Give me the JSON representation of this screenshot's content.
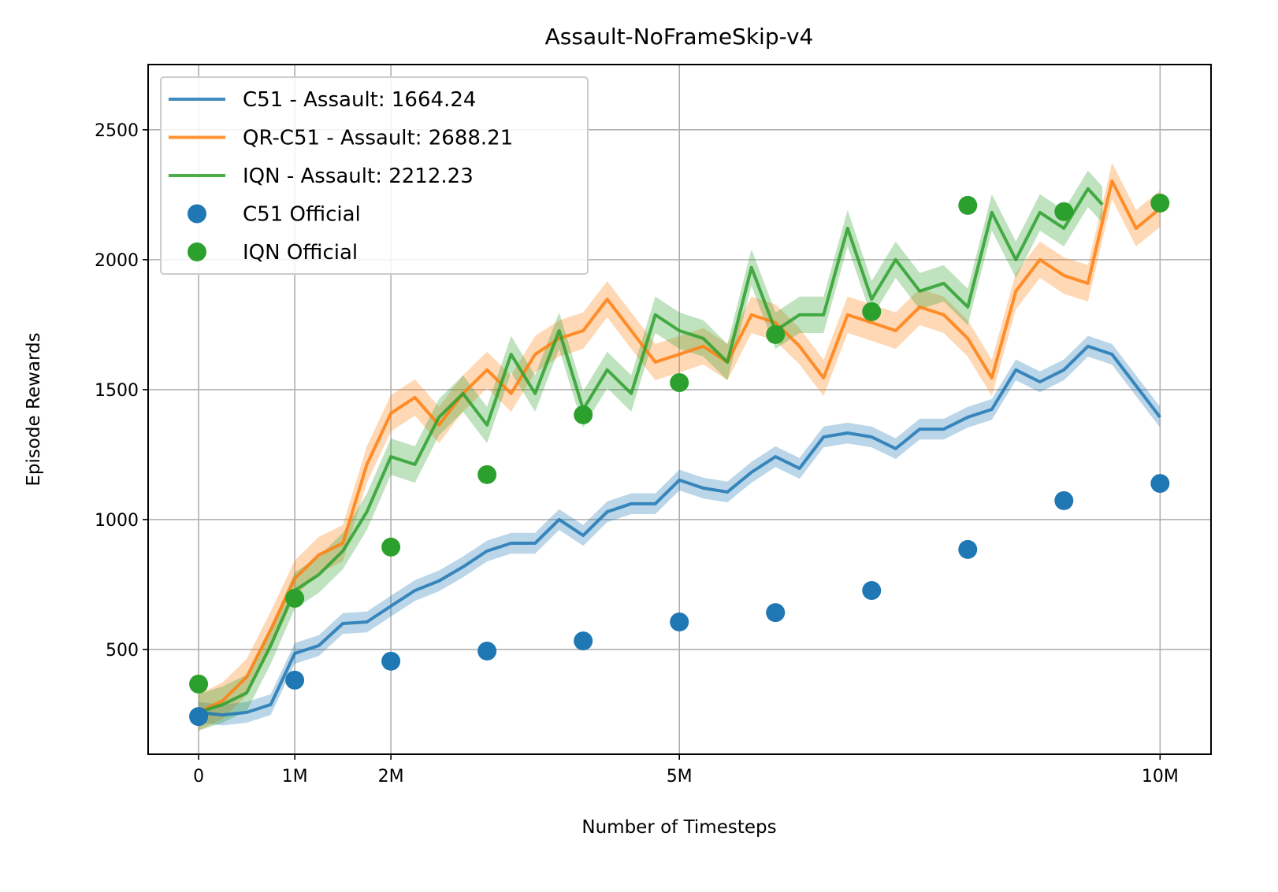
{
  "chart_data": {
    "type": "line",
    "title": "Assault-NoFrameSkip-v4",
    "xlabel": "Number of Timesteps",
    "ylabel": "Episode Rewards",
    "xlim": [
      -0.525,
      10.53
    ],
    "ylim": [
      97,
      2751
    ],
    "xticks": [
      {
        "value": 0,
        "label": "0"
      },
      {
        "value": 1,
        "label": "1M"
      },
      {
        "value": 2,
        "label": "2M"
      },
      {
        "value": 5,
        "label": "5M"
      },
      {
        "value": 10,
        "label": "10M"
      }
    ],
    "yticks": [
      {
        "value": 500,
        "label": "500"
      },
      {
        "value": 1000,
        "label": "1000"
      },
      {
        "value": 1500,
        "label": "1500"
      },
      {
        "value": 2000,
        "label": "2000"
      },
      {
        "value": 2500,
        "label": "2500"
      }
    ],
    "grid": true,
    "legend_position": "top-left",
    "x_units": "millions of timesteps",
    "series": [
      {
        "name": "C51 - Assault: 1664.24",
        "kind": "line",
        "color": "#1f77b4",
        "band_halfwidth": 40,
        "x": [
          0,
          0.25,
          0.5,
          0.75,
          1,
          1.25,
          1.5,
          1.75,
          2,
          2.25,
          2.5,
          2.75,
          3,
          3.25,
          3.5,
          3.75,
          4,
          4.25,
          4.5,
          4.75,
          5,
          5.25,
          5.5,
          5.75,
          6,
          6.25,
          6.5,
          6.75,
          7,
          7.25,
          7.5,
          7.75,
          8,
          8.25,
          8.5,
          8.75,
          9,
          9.25,
          9.5,
          9.75,
          10
        ],
        "y": [
          258,
          248,
          258,
          288,
          485,
          515,
          600,
          606,
          667,
          727,
          764,
          818,
          879,
          909,
          909,
          1000,
          939,
          1030,
          1061,
          1061,
          1152,
          1121,
          1106,
          1182,
          1242,
          1197,
          1318,
          1333,
          1318,
          1273,
          1348,
          1348,
          1394,
          1424,
          1576,
          1530,
          1576,
          1667,
          1636,
          1515,
          1394
        ]
      },
      {
        "name": "QR-C51 - Assault: 2688.21",
        "kind": "line",
        "color": "#ff7f0e",
        "band_halfwidth": 70,
        "x": [
          0,
          0.25,
          0.5,
          0.75,
          1,
          1.25,
          1.5,
          1.75,
          2,
          2.25,
          2.5,
          2.75,
          3,
          3.25,
          3.5,
          3.75,
          4,
          4.25,
          4.5,
          4.75,
          5,
          5.25,
          5.5,
          5.75,
          6,
          6.25,
          6.5,
          6.75,
          7,
          7.25,
          7.5,
          7.75,
          8,
          8.25,
          8.5,
          8.75,
          9,
          9.25,
          9.5,
          9.75,
          10
        ],
        "y": [
          258,
          303,
          394,
          576,
          773,
          864,
          909,
          1212,
          1409,
          1470,
          1364,
          1485,
          1576,
          1485,
          1636,
          1697,
          1727,
          1848,
          1727,
          1606,
          1636,
          1667,
          1606,
          1788,
          1758,
          1667,
          1545,
          1788,
          1758,
          1727,
          1818,
          1788,
          1697,
          1545,
          1879,
          2000,
          1939,
          1909,
          2303,
          2121,
          2197
        ]
      },
      {
        "name": "IQN - Assault: 2212.23",
        "kind": "line",
        "color": "#2ca02c",
        "band_halfwidth": 70,
        "x": [
          0,
          0.25,
          0.5,
          0.75,
          1,
          1.25,
          1.5,
          1.75,
          2,
          2.25,
          2.5,
          2.75,
          3,
          3.25,
          3.5,
          3.75,
          4,
          4.25,
          4.5,
          4.75,
          5,
          5.25,
          5.5,
          5.75,
          6,
          6.25,
          6.5,
          6.75,
          7,
          7.25,
          7.5,
          7.75,
          8,
          8.25,
          8.5,
          8.75,
          9,
          9.25,
          9.4
        ],
        "y": [
          258,
          288,
          333,
          515,
          727,
          788,
          879,
          1030,
          1242,
          1212,
          1394,
          1485,
          1364,
          1636,
          1485,
          1727,
          1424,
          1576,
          1485,
          1788,
          1727,
          1697,
          1606,
          1970,
          1727,
          1788,
          1788,
          2121,
          1848,
          2000,
          1879,
          1909,
          1818,
          2182,
          2000,
          2182,
          2121,
          2273,
          2212
        ]
      },
      {
        "name": "C51 Official",
        "kind": "scatter",
        "color": "#1f77b4",
        "x": [
          0,
          1,
          2,
          3,
          4,
          5,
          6,
          7,
          8,
          9,
          10
        ],
        "y": [
          242,
          382,
          455,
          494,
          533,
          606,
          642,
          727,
          885,
          1073,
          1139
        ]
      },
      {
        "name": "IQN Official",
        "kind": "scatter",
        "color": "#2ca02c",
        "x": [
          0,
          1,
          2,
          3,
          4,
          5,
          6,
          7,
          8,
          9,
          10
        ],
        "y": [
          367,
          697,
          894,
          1173,
          1403,
          1527,
          1712,
          1800,
          2209,
          2185,
          2218
        ]
      }
    ]
  }
}
